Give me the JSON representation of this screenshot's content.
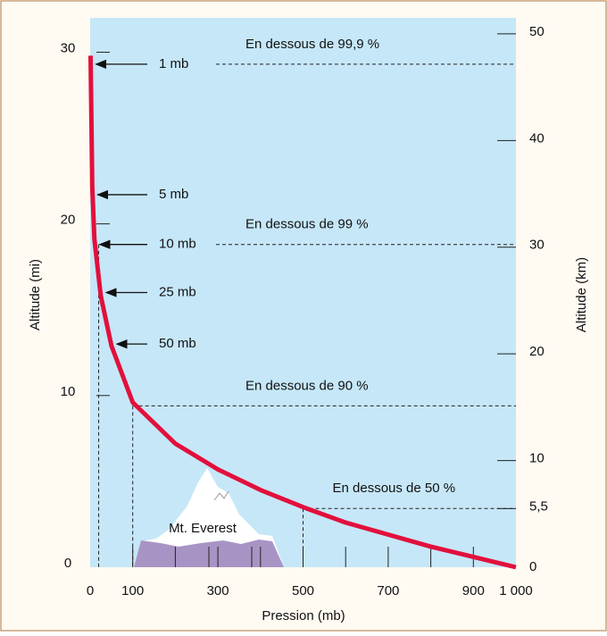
{
  "chart_data": {
    "type": "line",
    "xlabel": "Pression (mb)",
    "ylabel": "Altitude (mi)",
    "y2label": "Altitude (km)",
    "x": [
      1,
      5,
      10,
      25,
      50,
      100,
      200,
      300,
      400,
      500,
      600,
      700,
      800,
      900,
      1000
    ],
    "series": [
      {
        "color": "#e2103c",
        "values": [
          29.8,
          22.1,
          19.1,
          15.8,
          12.9,
          9.6,
          7.2,
          5.7,
          4.5,
          3.5,
          2.6,
          1.9,
          1.2,
          0.6,
          0
        ]
      }
    ],
    "xlim": [
      0,
      1000
    ],
    "xticks": [
      0,
      100,
      300,
      500,
      700,
      900,
      {
        "value": 1000,
        "label": "1 000"
      }
    ],
    "xminor_ticks": [
      200,
      400,
      600,
      800
    ],
    "ylim": [
      0,
      32
    ],
    "yticks": [
      0,
      10,
      20,
      30
    ],
    "y2lim": [
      0,
      51.5
    ],
    "y2ticks": [
      0,
      {
        "value": 5.5,
        "label": "5,5"
      },
      10,
      20,
      30,
      40,
      50
    ],
    "pressure_labels": [
      {
        "text": "1 mb",
        "x": 1,
        "y": 29.3
      },
      {
        "text": "5 mb",
        "x": 5,
        "y": 21.7
      },
      {
        "text": "10 mb",
        "x": 10,
        "y": 18.8
      },
      {
        "text": "25 mb",
        "x": 25,
        "y": 16.0
      },
      {
        "text": "50 mb",
        "x": 50,
        "y": 13.0
      }
    ],
    "thresholds": [
      {
        "text": "En dessous de 99,9 %",
        "y": 29.3
      },
      {
        "text": "En dessous de 99 %",
        "x": 20,
        "y": 18.8
      },
      {
        "text": "En dessous de 90 %",
        "x": 100,
        "y": 9.4
      },
      {
        "text": "En dessous de 50 %",
        "x": 500,
        "y": 3.42
      }
    ],
    "mountain_label": "Mt. Everest"
  }
}
